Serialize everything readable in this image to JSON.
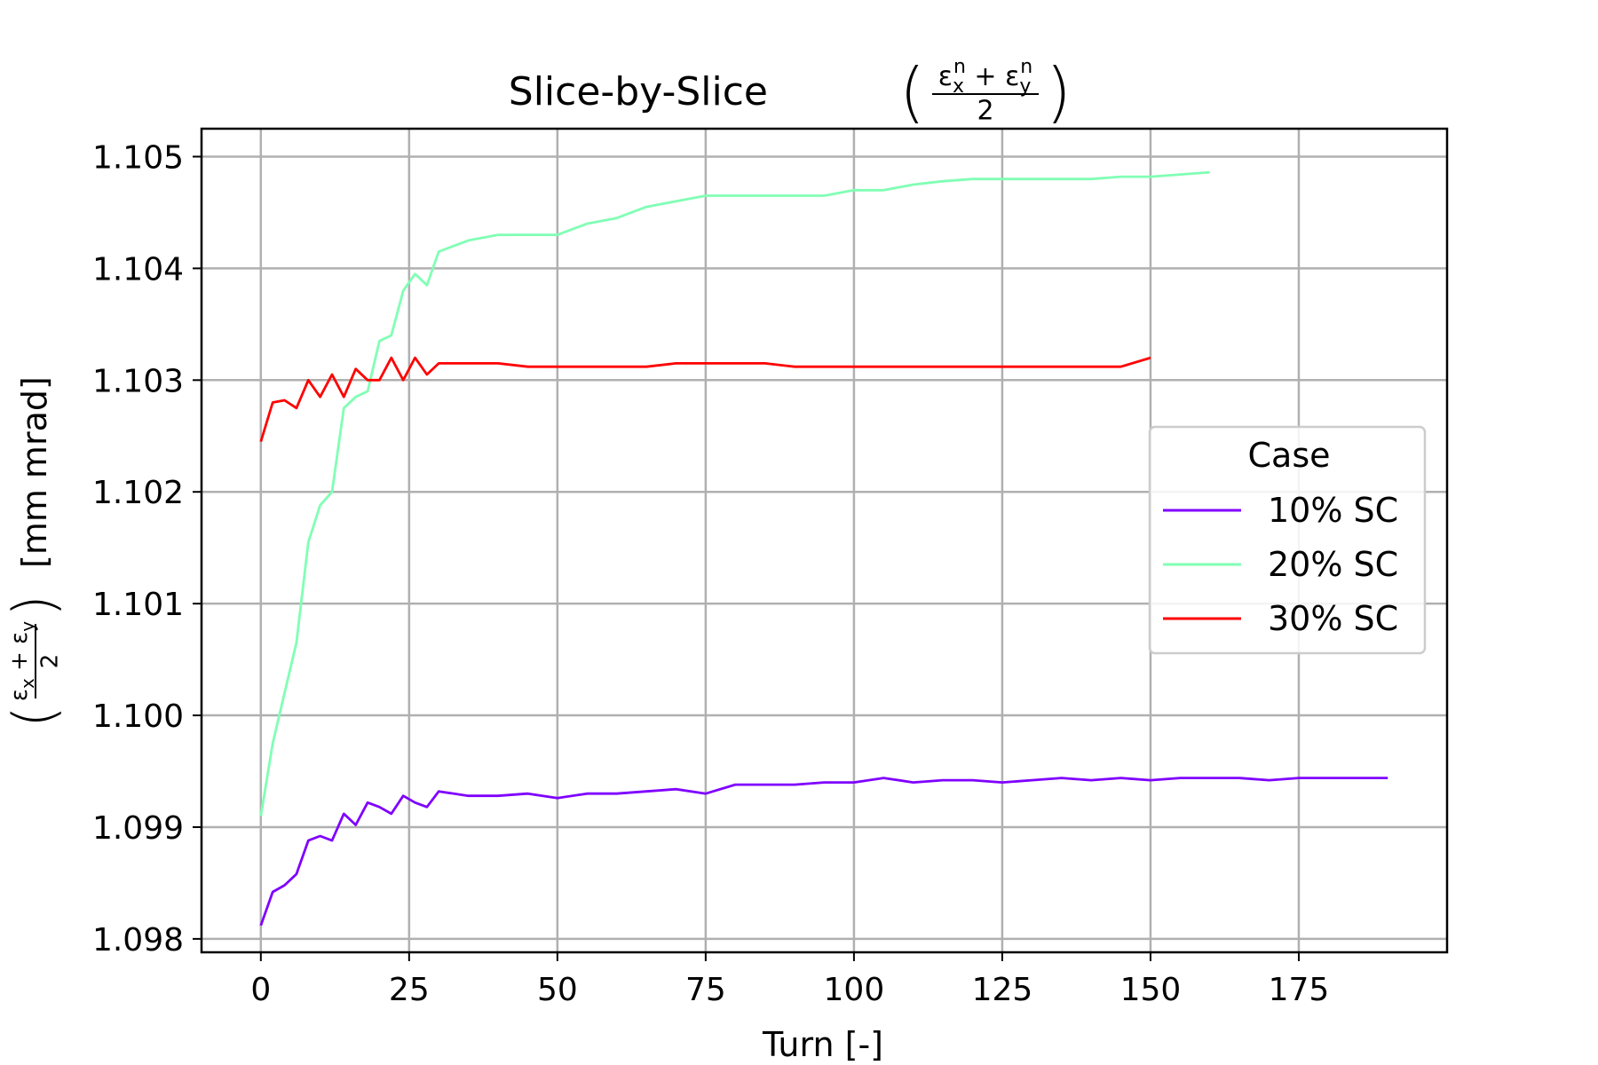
{
  "chart_data": {
    "type": "line",
    "title": "Slice-by-Slice",
    "title_math": {
      "num_left": "ε",
      "num_left_sub": "x",
      "num_right": "ε",
      "num_right_sub": "y",
      "sup": "n",
      "plus": "+",
      "den": "2"
    },
    "xlabel": "Turn [-]",
    "ylabel": "[mm mrad]",
    "ylabel_math": {
      "num_left": "ε",
      "num_left_sub": "x",
      "num_right": "ε",
      "num_right_sub": "y",
      "plus": "+",
      "den": "2"
    },
    "xlim": [
      -10,
      200
    ],
    "ylim": [
      1.09788,
      1.10525
    ],
    "xticks": [
      0,
      25,
      50,
      75,
      100,
      125,
      150,
      175
    ],
    "xtick_labels": [
      "0",
      "25",
      "50",
      "75",
      "100",
      "125",
      "150",
      "175"
    ],
    "yticks": [
      1.098,
      1.099,
      1.1,
      1.101,
      1.102,
      1.103,
      1.104,
      1.105
    ],
    "ytick_labels": [
      "1.098",
      "1.099",
      "1.100",
      "1.101",
      "1.102",
      "1.103",
      "1.104",
      "1.105"
    ],
    "grid": true,
    "legend": {
      "title": "Case",
      "placement": "center-right"
    },
    "series": [
      {
        "name": "10% SC",
        "color": "#7f00ff",
        "x": [
          0,
          2,
          4,
          6,
          8,
          10,
          12,
          14,
          16,
          18,
          20,
          22,
          24,
          26,
          28,
          30,
          35,
          40,
          45,
          50,
          55,
          60,
          65,
          70,
          75,
          80,
          85,
          90,
          95,
          100,
          105,
          110,
          115,
          120,
          125,
          130,
          135,
          140,
          145,
          150,
          155,
          160,
          165,
          170,
          175,
          180,
          185,
          190
        ],
        "y": [
          1.09812,
          1.09842,
          1.09848,
          1.09858,
          1.09888,
          1.09892,
          1.09888,
          1.09912,
          1.09902,
          1.09922,
          1.09918,
          1.09912,
          1.09928,
          1.09922,
          1.09918,
          1.09932,
          1.09928,
          1.09928,
          1.0993,
          1.09926,
          1.0993,
          1.0993,
          1.09932,
          1.09934,
          1.0993,
          1.09938,
          1.09938,
          1.09938,
          1.0994,
          1.0994,
          1.09944,
          1.0994,
          1.09942,
          1.09942,
          1.0994,
          1.09942,
          1.09944,
          1.09942,
          1.09944,
          1.09942,
          1.09944,
          1.09944,
          1.09944,
          1.09942,
          1.09944,
          1.09944,
          1.09944,
          1.09944
        ]
      },
      {
        "name": "20% SC",
        "color": "#80ffb4",
        "x": [
          0,
          2,
          4,
          6,
          8,
          10,
          12,
          14,
          16,
          18,
          20,
          22,
          24,
          26,
          28,
          30,
          35,
          40,
          45,
          50,
          55,
          60,
          65,
          70,
          75,
          80,
          85,
          90,
          95,
          100,
          105,
          110,
          115,
          120,
          125,
          130,
          135,
          140,
          145,
          150,
          155,
          160
        ],
        "y": [
          1.0991,
          1.09975,
          1.1002,
          1.10065,
          1.10155,
          1.10188,
          1.102,
          1.10275,
          1.10285,
          1.1029,
          1.10335,
          1.1034,
          1.1038,
          1.10395,
          1.10385,
          1.10415,
          1.10425,
          1.1043,
          1.1043,
          1.1043,
          1.1044,
          1.10445,
          1.10455,
          1.1046,
          1.10465,
          1.10465,
          1.10465,
          1.10465,
          1.10465,
          1.1047,
          1.1047,
          1.10475,
          1.10478,
          1.1048,
          1.1048,
          1.1048,
          1.1048,
          1.1048,
          1.10482,
          1.10482,
          1.10484,
          1.10486
        ]
      },
      {
        "name": "30% SC",
        "color": "#ff0000",
        "x": [
          0,
          2,
          4,
          6,
          8,
          10,
          12,
          14,
          16,
          18,
          20,
          22,
          24,
          26,
          28,
          30,
          35,
          40,
          45,
          50,
          55,
          60,
          65,
          70,
          75,
          80,
          85,
          90,
          95,
          100,
          105,
          110,
          115,
          120,
          125,
          130,
          135,
          140,
          145,
          150
        ],
        "y": [
          1.10245,
          1.1028,
          1.10282,
          1.10275,
          1.103,
          1.10285,
          1.10305,
          1.10285,
          1.1031,
          1.103,
          1.103,
          1.1032,
          1.103,
          1.1032,
          1.10305,
          1.10315,
          1.10315,
          1.10315,
          1.10312,
          1.10312,
          1.10312,
          1.10312,
          1.10312,
          1.10315,
          1.10315,
          1.10315,
          1.10315,
          1.10312,
          1.10312,
          1.10312,
          1.10312,
          1.10312,
          1.10312,
          1.10312,
          1.10312,
          1.10312,
          1.10312,
          1.10312,
          1.10312,
          1.1032
        ]
      }
    ]
  }
}
